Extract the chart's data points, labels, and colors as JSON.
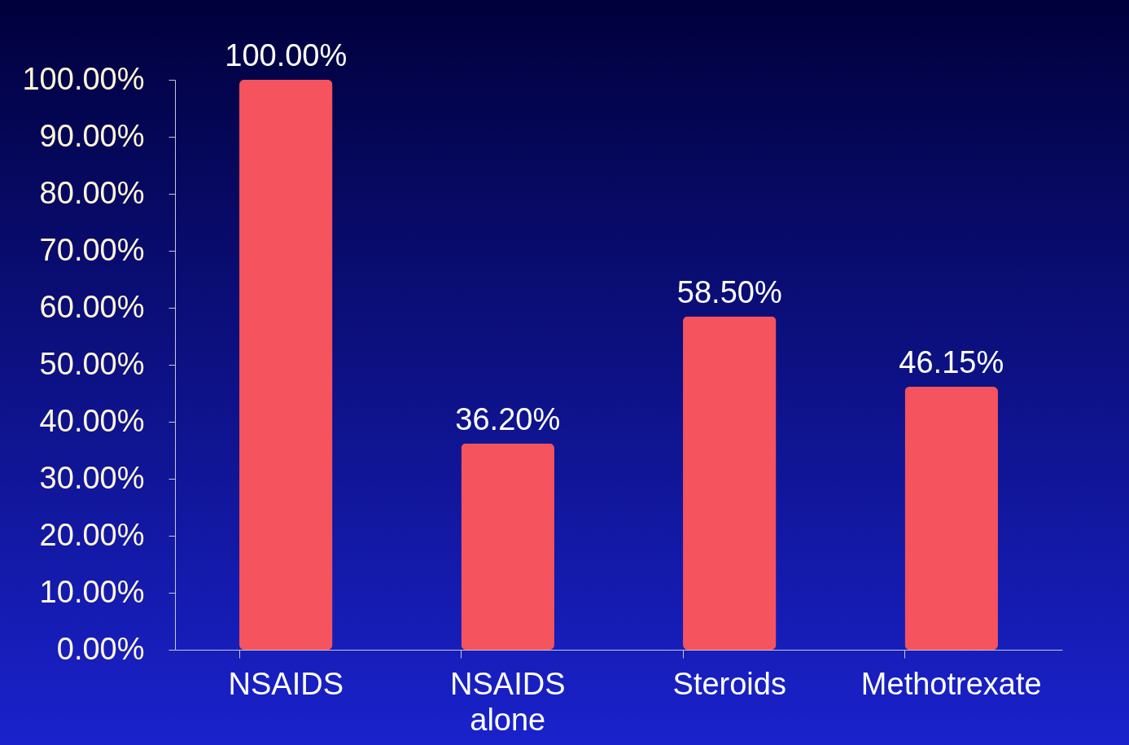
{
  "chart_data": {
    "type": "bar",
    "categories": [
      "NSAIDS",
      "NSAIDS alone",
      "Steroids",
      "Methotrexate"
    ],
    "values": [
      100,
      36.2,
      58.5,
      46.15
    ],
    "value_labels": [
      "100.00%",
      "36.20%",
      "58.50%",
      "46.15%"
    ],
    "color": "#f5535e",
    "ylim": [
      0,
      100
    ],
    "yticks": [
      {
        "value": 0,
        "label": "0.00%"
      },
      {
        "value": 10,
        "label": "10.00%"
      },
      {
        "value": 20,
        "label": "20.00%"
      },
      {
        "value": 30,
        "label": "30.00%"
      },
      {
        "value": 40,
        "label": "40.00%"
      },
      {
        "value": 50,
        "label": "50.00%"
      },
      {
        "value": 60,
        "label": "60.00%"
      },
      {
        "value": 70,
        "label": "70.00%"
      },
      {
        "value": 80,
        "label": "80.00%"
      },
      {
        "value": 90,
        "label": "90.00%"
      },
      {
        "value": 100,
        "label": "100.00%"
      }
    ]
  }
}
